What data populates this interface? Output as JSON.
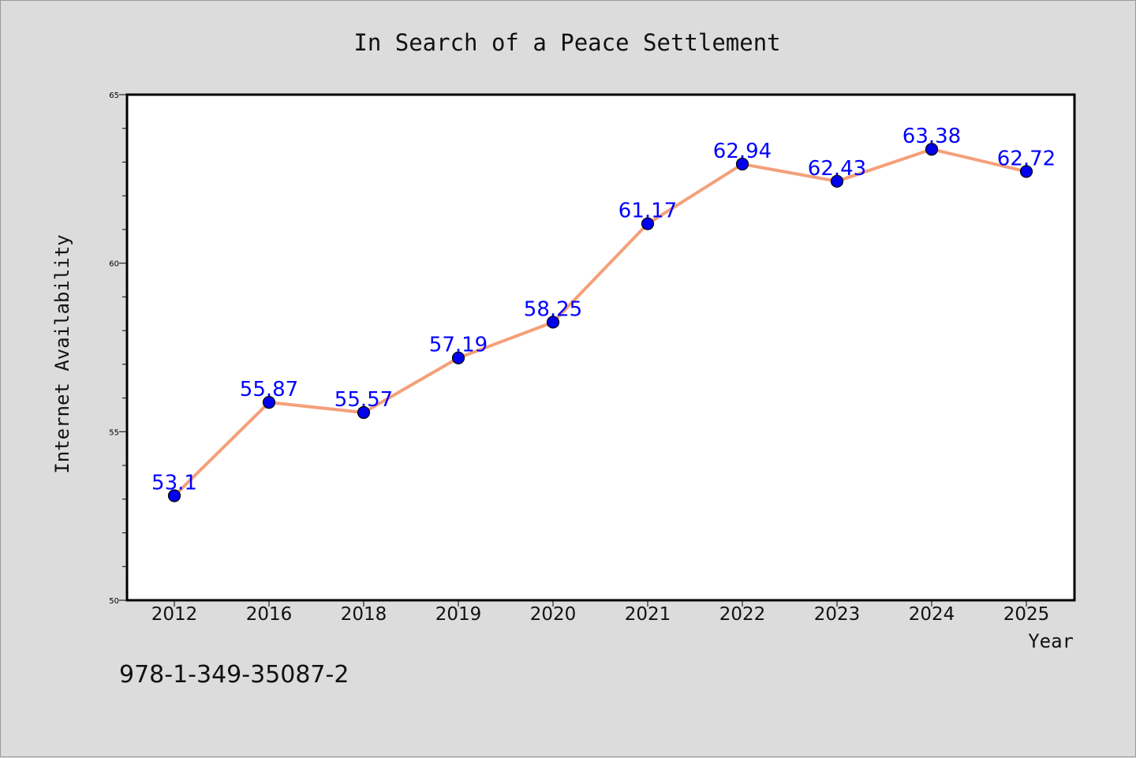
{
  "chart_data": {
    "type": "line",
    "title": "In Search of a Peace Settlement",
    "xlabel": "Year",
    "ylabel": "Internet Availability",
    "categories": [
      "2012",
      "2016",
      "2018",
      "2019",
      "2020",
      "2021",
      "2022",
      "2023",
      "2024",
      "2025"
    ],
    "series": [
      {
        "values": [
          53.1,
          55.87,
          55.57,
          57.19,
          58.25,
          61.17,
          62.94,
          62.43,
          63.38,
          62.72
        ],
        "labels": [
          "53.1",
          "55.87",
          "55.57",
          "57.19",
          "58.25",
          "61.17",
          "62.94",
          "62.43",
          "63.38",
          "62.72"
        ],
        "line_color": "#f4a07a",
        "marker_color": "#0000ee",
        "label_color": "#0000ff"
      }
    ],
    "ylim": [
      50,
      65
    ],
    "yticks": [
      "50",
      "55",
      "60",
      "65"
    ],
    "grid": false,
    "legend": "none"
  },
  "footer_text": "978-1-349-35087-2"
}
